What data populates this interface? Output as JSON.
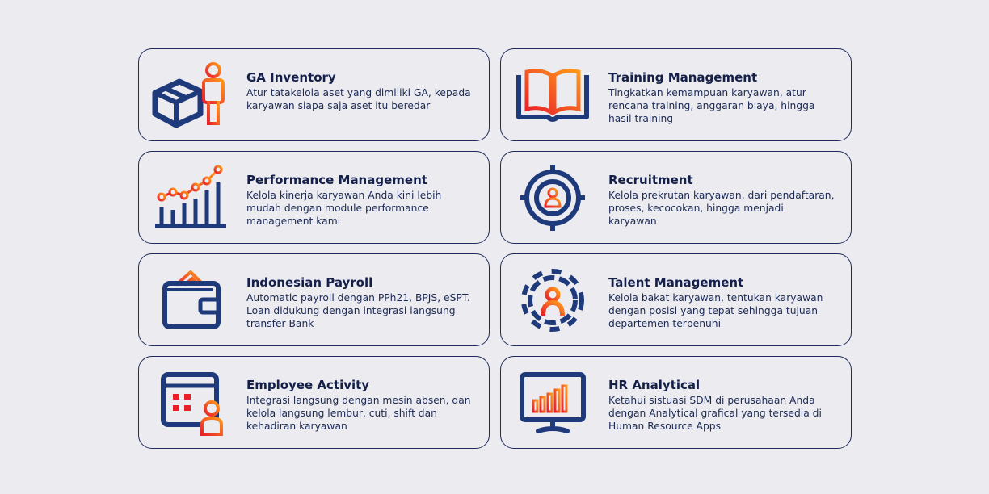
{
  "colors": {
    "navy": "#1f3a7a",
    "accent_start": "#e8202a",
    "accent_end": "#ff9a1a",
    "border": "#1f2c5c",
    "background": "#ebebf0"
  },
  "cards": [
    {
      "icon": "box-person-icon",
      "title": "GA Inventory",
      "desc": "Atur tatakelola aset yang dimiliki GA, kepada karyawan siapa saja aset itu beredar"
    },
    {
      "icon": "book-icon",
      "title": "Training Management",
      "desc": "Tingkatkan kemampuan karyawan, atur rencana training, anggaran biaya, hingga hasil training"
    },
    {
      "icon": "growth-chart-icon",
      "title": "Performance Management",
      "desc": "Kelola kinerja karyawan Anda kini lebih mudah dengan module performance management kami"
    },
    {
      "icon": "target-person-icon",
      "title": "Recruitment",
      "desc": "Kelola prekrutan karyawan, dari pendaftaran, proses, kecocokan, hingga menjadi karyawan"
    },
    {
      "icon": "wallet-icon",
      "title": "Indonesian Payroll",
      "desc": "Automatic payroll dengan PPh21, BPJS, eSPT. Loan didukung dengan integrasi langsung transfer Bank"
    },
    {
      "icon": "gear-person-icon",
      "title": "Talent Management",
      "desc": "Kelola bakat karyawan, tentukan karyawan dengan posisi yang tepat sehingga tujuan departemen terpenuhi"
    },
    {
      "icon": "calendar-person-icon",
      "title": "Employee Activity",
      "desc": "Integrasi langsung dengan mesin absen, dan kelola langsung lembur, cuti, shift dan kehadiran karyawan"
    },
    {
      "icon": "monitor-chart-icon",
      "title": "HR Analytical",
      "desc": "Ketahui sistuasi SDM di perusahaan Anda dengan Analytical grafical yang tersedia di Human Resource Apps"
    }
  ]
}
